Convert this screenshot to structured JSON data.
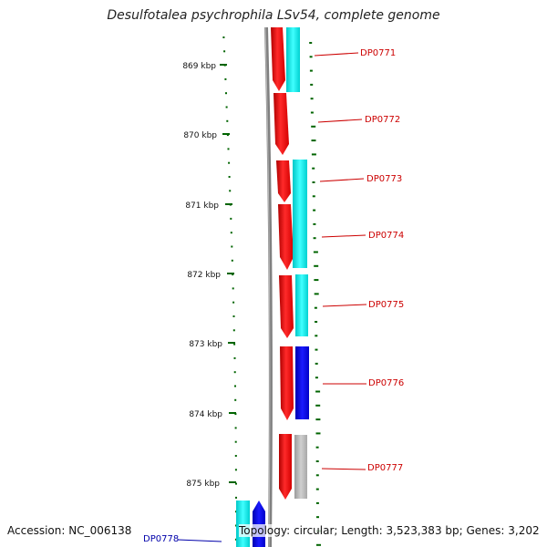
{
  "title": "Desulfotalea psychrophila LSv54, complete genome",
  "footer": {
    "accession": "Accession: NC_006138",
    "topology": "Topology: circular; Length: 3,523,383 bp; Genes: 3,202"
  },
  "scale_labels": [
    "869 kbp",
    "870 kbp",
    "871 kbp",
    "872 kbp",
    "873 kbp",
    "874 kbp",
    "875 kbp"
  ],
  "genes": [
    {
      "name": "DP0771",
      "color": "#cc0000"
    },
    {
      "name": "DP0772",
      "color": "#cc0000"
    },
    {
      "name": "DP0773",
      "color": "#cc0000"
    },
    {
      "name": "DP0774",
      "color": "#cc0000"
    },
    {
      "name": "DP0775",
      "color": "#cc0000"
    },
    {
      "name": "DP0776",
      "color": "#cc0000"
    },
    {
      "name": "DP0777",
      "color": "#cc0000"
    },
    {
      "name": "DP0778",
      "color": "#0000aa"
    }
  ],
  "colors": {
    "backbone": "#808080",
    "cds_forward": "#ff0000",
    "orf_cyan": "#00e5e5",
    "orf_blue": "#0000ee",
    "orf_gray": "#b0b0b0",
    "tick_green": "#006400"
  }
}
